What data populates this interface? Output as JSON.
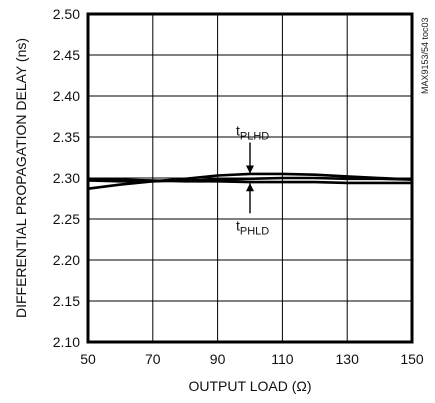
{
  "chart_data": {
    "type": "line",
    "xlabel": "OUTPUT LOAD (Ω)",
    "ylabel": "DIFFERENTIAL PROPAGATION DELAY (ns)",
    "xlim": [
      50,
      150
    ],
    "ylim": [
      2.1,
      2.5
    ],
    "x_ticks": [
      "50",
      "70",
      "90",
      "110",
      "130",
      "150"
    ],
    "y_ticks": [
      "2.10",
      "2.15",
      "2.20",
      "2.25",
      "2.30",
      "2.35",
      "2.40",
      "2.45",
      "2.50"
    ],
    "grid": true,
    "side_label": "MAX9153/54 toc03",
    "series": [
      {
        "name": "PLHD",
        "x": [
          50,
          60,
          70,
          80,
          90,
          100,
          110,
          120,
          130,
          140,
          150
        ],
        "y": [
          2.287,
          2.292,
          2.296,
          2.299,
          2.303,
          2.305,
          2.305,
          2.304,
          2.302,
          2.3,
          2.298
        ]
      },
      {
        "name": "PHLD",
        "x": [
          50,
          60,
          70,
          80,
          90,
          100,
          110,
          120,
          130,
          140,
          150
        ],
        "y": [
          2.299,
          2.298,
          2.297,
          2.296,
          2.296,
          2.295,
          2.295,
          2.295,
          2.294,
          2.294,
          2.294
        ]
      },
      {
        "name": "",
        "x": [
          50,
          60,
          70,
          80,
          90,
          100,
          110,
          120,
          130,
          140,
          150
        ],
        "y": [
          2.297,
          2.296,
          2.296,
          2.297,
          2.298,
          2.299,
          2.3,
          2.3,
          2.299,
          2.299,
          2.298
        ]
      }
    ],
    "annotations": [
      {
        "main": "t",
        "sub": "PLHD",
        "points_to_x": 100,
        "points_to_y": 2.303,
        "direction": "down"
      },
      {
        "main": "t",
        "sub": "PHLD",
        "points_to_x": 100,
        "points_to_y": 2.296,
        "direction": "up"
      }
    ]
  }
}
